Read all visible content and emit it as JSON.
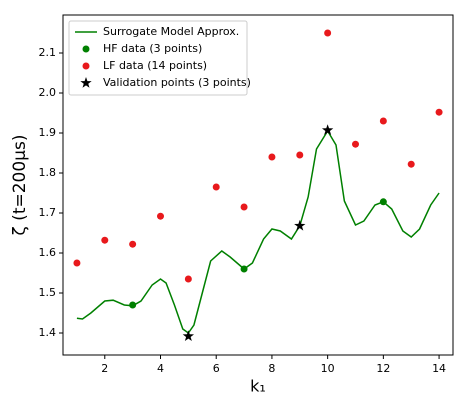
{
  "chart_data": {
    "type": "line",
    "xlabel": "k₁",
    "ylabel": "ζ (t=200μs)",
    "xlim": [
      0.5,
      14.5
    ],
    "ylim": [
      1.345,
      2.195
    ],
    "xticks": [
      2,
      4,
      6,
      8,
      10,
      12,
      14
    ],
    "yticks": [
      1.4,
      1.5,
      1.6,
      1.7,
      1.8,
      1.9,
      {
        "value": 2,
        "label": "2.0"
      },
      2.1
    ],
    "legend": "upper left",
    "series": [
      {
        "name": "Surrogate Model Approx.",
        "color": "#008000",
        "marker": "none",
        "x": [
          1,
          1.2,
          1.5,
          2,
          2.3,
          2.7,
          3,
          3.3,
          3.7,
          4,
          4.2,
          4.5,
          4.8,
          5,
          5.2,
          5.5,
          5.8,
          6.2,
          6.5,
          7,
          7.3,
          7.7,
          8,
          8.3,
          8.7,
          9,
          9.3,
          9.6,
          10,
          10.3,
          10.6,
          11,
          11.3,
          11.7,
          12,
          12.3,
          12.7,
          13,
          13.3,
          13.7,
          14
        ],
        "values": [
          1.437,
          1.435,
          1.45,
          1.48,
          1.482,
          1.47,
          1.468,
          1.48,
          1.52,
          1.535,
          1.525,
          1.47,
          1.41,
          1.4,
          1.42,
          1.5,
          1.58,
          1.605,
          1.59,
          1.56,
          1.575,
          1.635,
          1.66,
          1.655,
          1.635,
          1.668,
          1.74,
          1.86,
          1.905,
          1.87,
          1.73,
          1.67,
          1.68,
          1.72,
          1.728,
          1.71,
          1.655,
          1.64,
          1.66,
          1.72,
          1.75
        ]
      },
      {
        "name": "HF data (3 points)",
        "color": "#008000",
        "marker": "circle",
        "x": [
          3,
          7,
          12
        ],
        "values": [
          1.47,
          1.56,
          1.728
        ]
      },
      {
        "name": "LF data (14 points)",
        "color": "#e8191c",
        "marker": "circle",
        "x": [
          1,
          2,
          3,
          4,
          5,
          6,
          7,
          8,
          9,
          10,
          11,
          12,
          13,
          14
        ],
        "values": [
          1.575,
          1.632,
          1.622,
          1.692,
          1.535,
          1.765,
          1.715,
          1.84,
          1.845,
          2.15,
          1.872,
          1.93,
          1.822,
          1.952
        ]
      },
      {
        "name": "Validation points (3 points)",
        "color": "#000000",
        "marker": "star",
        "x": [
          5,
          9,
          10
        ],
        "values": [
          1.392,
          1.668,
          1.907
        ]
      }
    ]
  }
}
